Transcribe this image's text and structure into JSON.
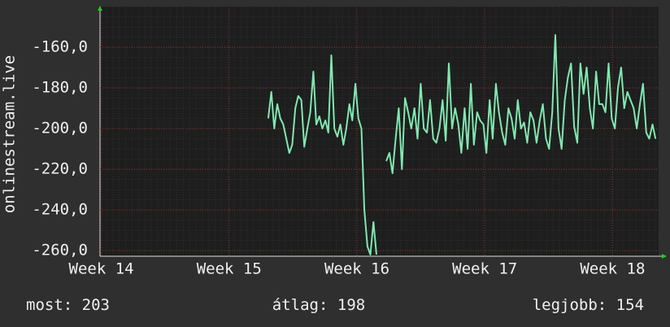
{
  "chart_data": {
    "type": "line",
    "y_label": "onlinestream.live",
    "x": [
      15.306,
      15.33,
      15.353,
      15.377,
      15.4,
      15.424,
      15.447,
      15.471,
      15.494,
      15.518,
      15.541,
      15.565,
      15.588,
      15.612,
      15.635,
      15.659,
      15.682,
      15.706,
      15.729,
      15.753,
      15.776,
      15.8,
      15.823,
      15.847,
      15.87,
      15.894,
      15.917,
      15.941,
      15.964,
      15.988,
      16.011,
      16.035,
      16.058,
      16.082,
      16.105,
      16.129,
      16.153,
      16.19,
      16.229,
      16.254,
      16.278,
      16.303,
      16.327,
      16.352,
      16.376,
      16.401,
      16.425,
      16.45,
      16.474,
      16.499,
      16.523,
      16.548,
      16.572,
      16.597,
      16.621,
      16.646,
      16.67,
      16.695,
      16.719,
      16.744,
      16.768,
      16.793,
      16.817,
      16.842,
      16.866,
      16.891,
      16.915,
      16.94,
      16.964,
      16.989,
      17.013,
      17.038,
      17.062,
      17.087,
      17.111,
      17.136,
      17.16,
      17.185,
      17.209,
      17.234,
      17.258,
      17.283,
      17.307,
      17.332,
      17.356,
      17.381,
      17.405,
      17.43,
      17.454,
      17.479,
      17.503,
      17.528,
      17.552,
      17.577,
      17.601,
      17.626,
      17.65,
      17.675,
      17.699,
      17.724,
      17.748,
      17.773,
      17.797,
      17.822,
      17.846,
      17.871,
      17.895,
      17.92,
      17.944,
      17.969,
      17.993,
      18.018,
      18.042,
      18.067,
      18.091,
      18.116,
      18.14,
      18.165,
      18.189,
      18.214,
      18.238,
      18.263,
      18.287,
      18.312,
      18.336
    ],
    "series": [
      {
        "name": "onlinestream.live",
        "color": "#80e8b0",
        "values": [
          -195,
          -182,
          -200,
          -188,
          -195,
          -198,
          -205,
          -212,
          -208,
          -190,
          -184,
          -186,
          -209,
          -200,
          -192,
          -172,
          -198,
          -194,
          -200,
          -196,
          -202,
          -164,
          -200,
          -204,
          -198,
          -208,
          -200,
          -188,
          -196,
          -178,
          -195,
          -200,
          -240,
          -258,
          -262,
          -246,
          -262,
          null,
          -216,
          -212,
          -222,
          -205,
          -190,
          -220,
          -185,
          -192,
          -200,
          -190,
          -205,
          -178,
          -200,
          -202,
          -186,
          -205,
          -207,
          -200,
          -186,
          -206,
          -168,
          -200,
          -190,
          -198,
          -212,
          -190,
          -210,
          -178,
          -208,
          -192,
          -196,
          -198,
          -212,
          -186,
          -205,
          -178,
          -192,
          -202,
          -208,
          -190,
          -195,
          -205,
          -186,
          -200,
          -197,
          -207,
          -192,
          -196,
          -207,
          -196,
          -188,
          -205,
          -210,
          -192,
          -154,
          -200,
          -210,
          -186,
          -175,
          -168,
          -199,
          -207,
          -168,
          -183,
          -170,
          -190,
          -200,
          -172,
          -188,
          -188,
          -192,
          -168,
          -195,
          -200,
          -180,
          -170,
          -190,
          -182,
          -186,
          -190,
          -200,
          -188,
          -178,
          -202,
          -205,
          -198,
          -205
        ]
      }
    ],
    "xlim": [
      13.99,
      18.36
    ],
    "xticks": [
      {
        "value": 14,
        "label": "Week 14"
      },
      {
        "value": 15,
        "label": "Week 15"
      },
      {
        "value": 16,
        "label": "Week 16"
      },
      {
        "value": 17,
        "label": "Week 17"
      },
      {
        "value": 18,
        "label": "Week 18"
      }
    ],
    "ylim": [
      -262.8,
      -140.8
    ],
    "yticks": [
      {
        "value": -260,
        "label": "-260,0"
      },
      {
        "value": -240,
        "label": "-240,0"
      },
      {
        "value": -220,
        "label": "-220,0"
      },
      {
        "value": -200,
        "label": "-200,0"
      },
      {
        "value": -180,
        "label": "-180,0"
      },
      {
        "value": -160,
        "label": "-160,0"
      }
    ],
    "grid": true,
    "stats": [
      {
        "label": "most:",
        "value": 203
      },
      {
        "label": "átlag:",
        "value": 198
      },
      {
        "label": "legjobb:",
        "value": 154
      }
    ]
  }
}
